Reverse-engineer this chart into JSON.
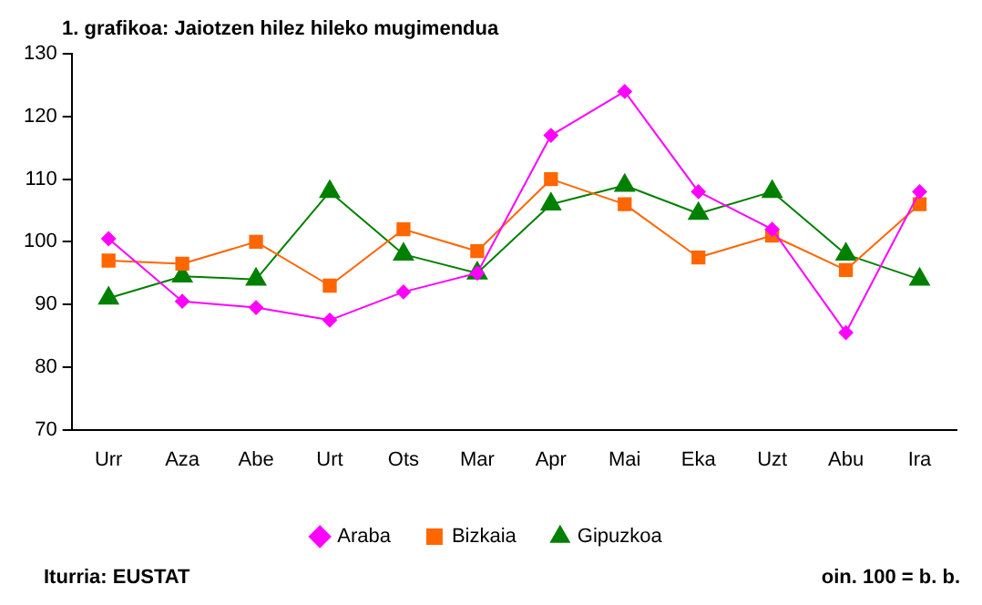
{
  "chart_data": {
    "type": "line",
    "title": "1. grafikoa: Jaiotzen hilez hileko mugimendua",
    "categories": [
      "Urr",
      "Aza",
      "Abe",
      "Urt",
      "Ots",
      "Mar",
      "Apr",
      "Mai",
      "Eka",
      "Uzt",
      "Abu",
      "Ira"
    ],
    "series": [
      {
        "name": "Araba",
        "color": "#ff00ff",
        "marker": "diamond",
        "values": [
          100.5,
          90.5,
          89.5,
          87.5,
          92,
          95,
          117,
          124,
          108,
          102,
          85.5,
          108
        ]
      },
      {
        "name": "Bizkaia",
        "color": "#ff6600",
        "marker": "square",
        "values": [
          97,
          96.5,
          100,
          93,
          102,
          98.5,
          110,
          106,
          97.5,
          101,
          95.5,
          106
        ]
      },
      {
        "name": "Gipuzkoa",
        "color": "#008000",
        "marker": "triangle",
        "values": [
          91,
          94.5,
          94,
          108,
          98,
          95,
          106,
          109,
          104.5,
          108,
          98,
          94
        ]
      }
    ],
    "ylim": [
      70,
      130
    ],
    "yticks": [
      70,
      80,
      90,
      100,
      110,
      120,
      130
    ],
    "grid": false,
    "legend": "bottom",
    "annotations": [
      "Iturria: EUSTAT",
      "oin. 100 = b. b."
    ]
  }
}
